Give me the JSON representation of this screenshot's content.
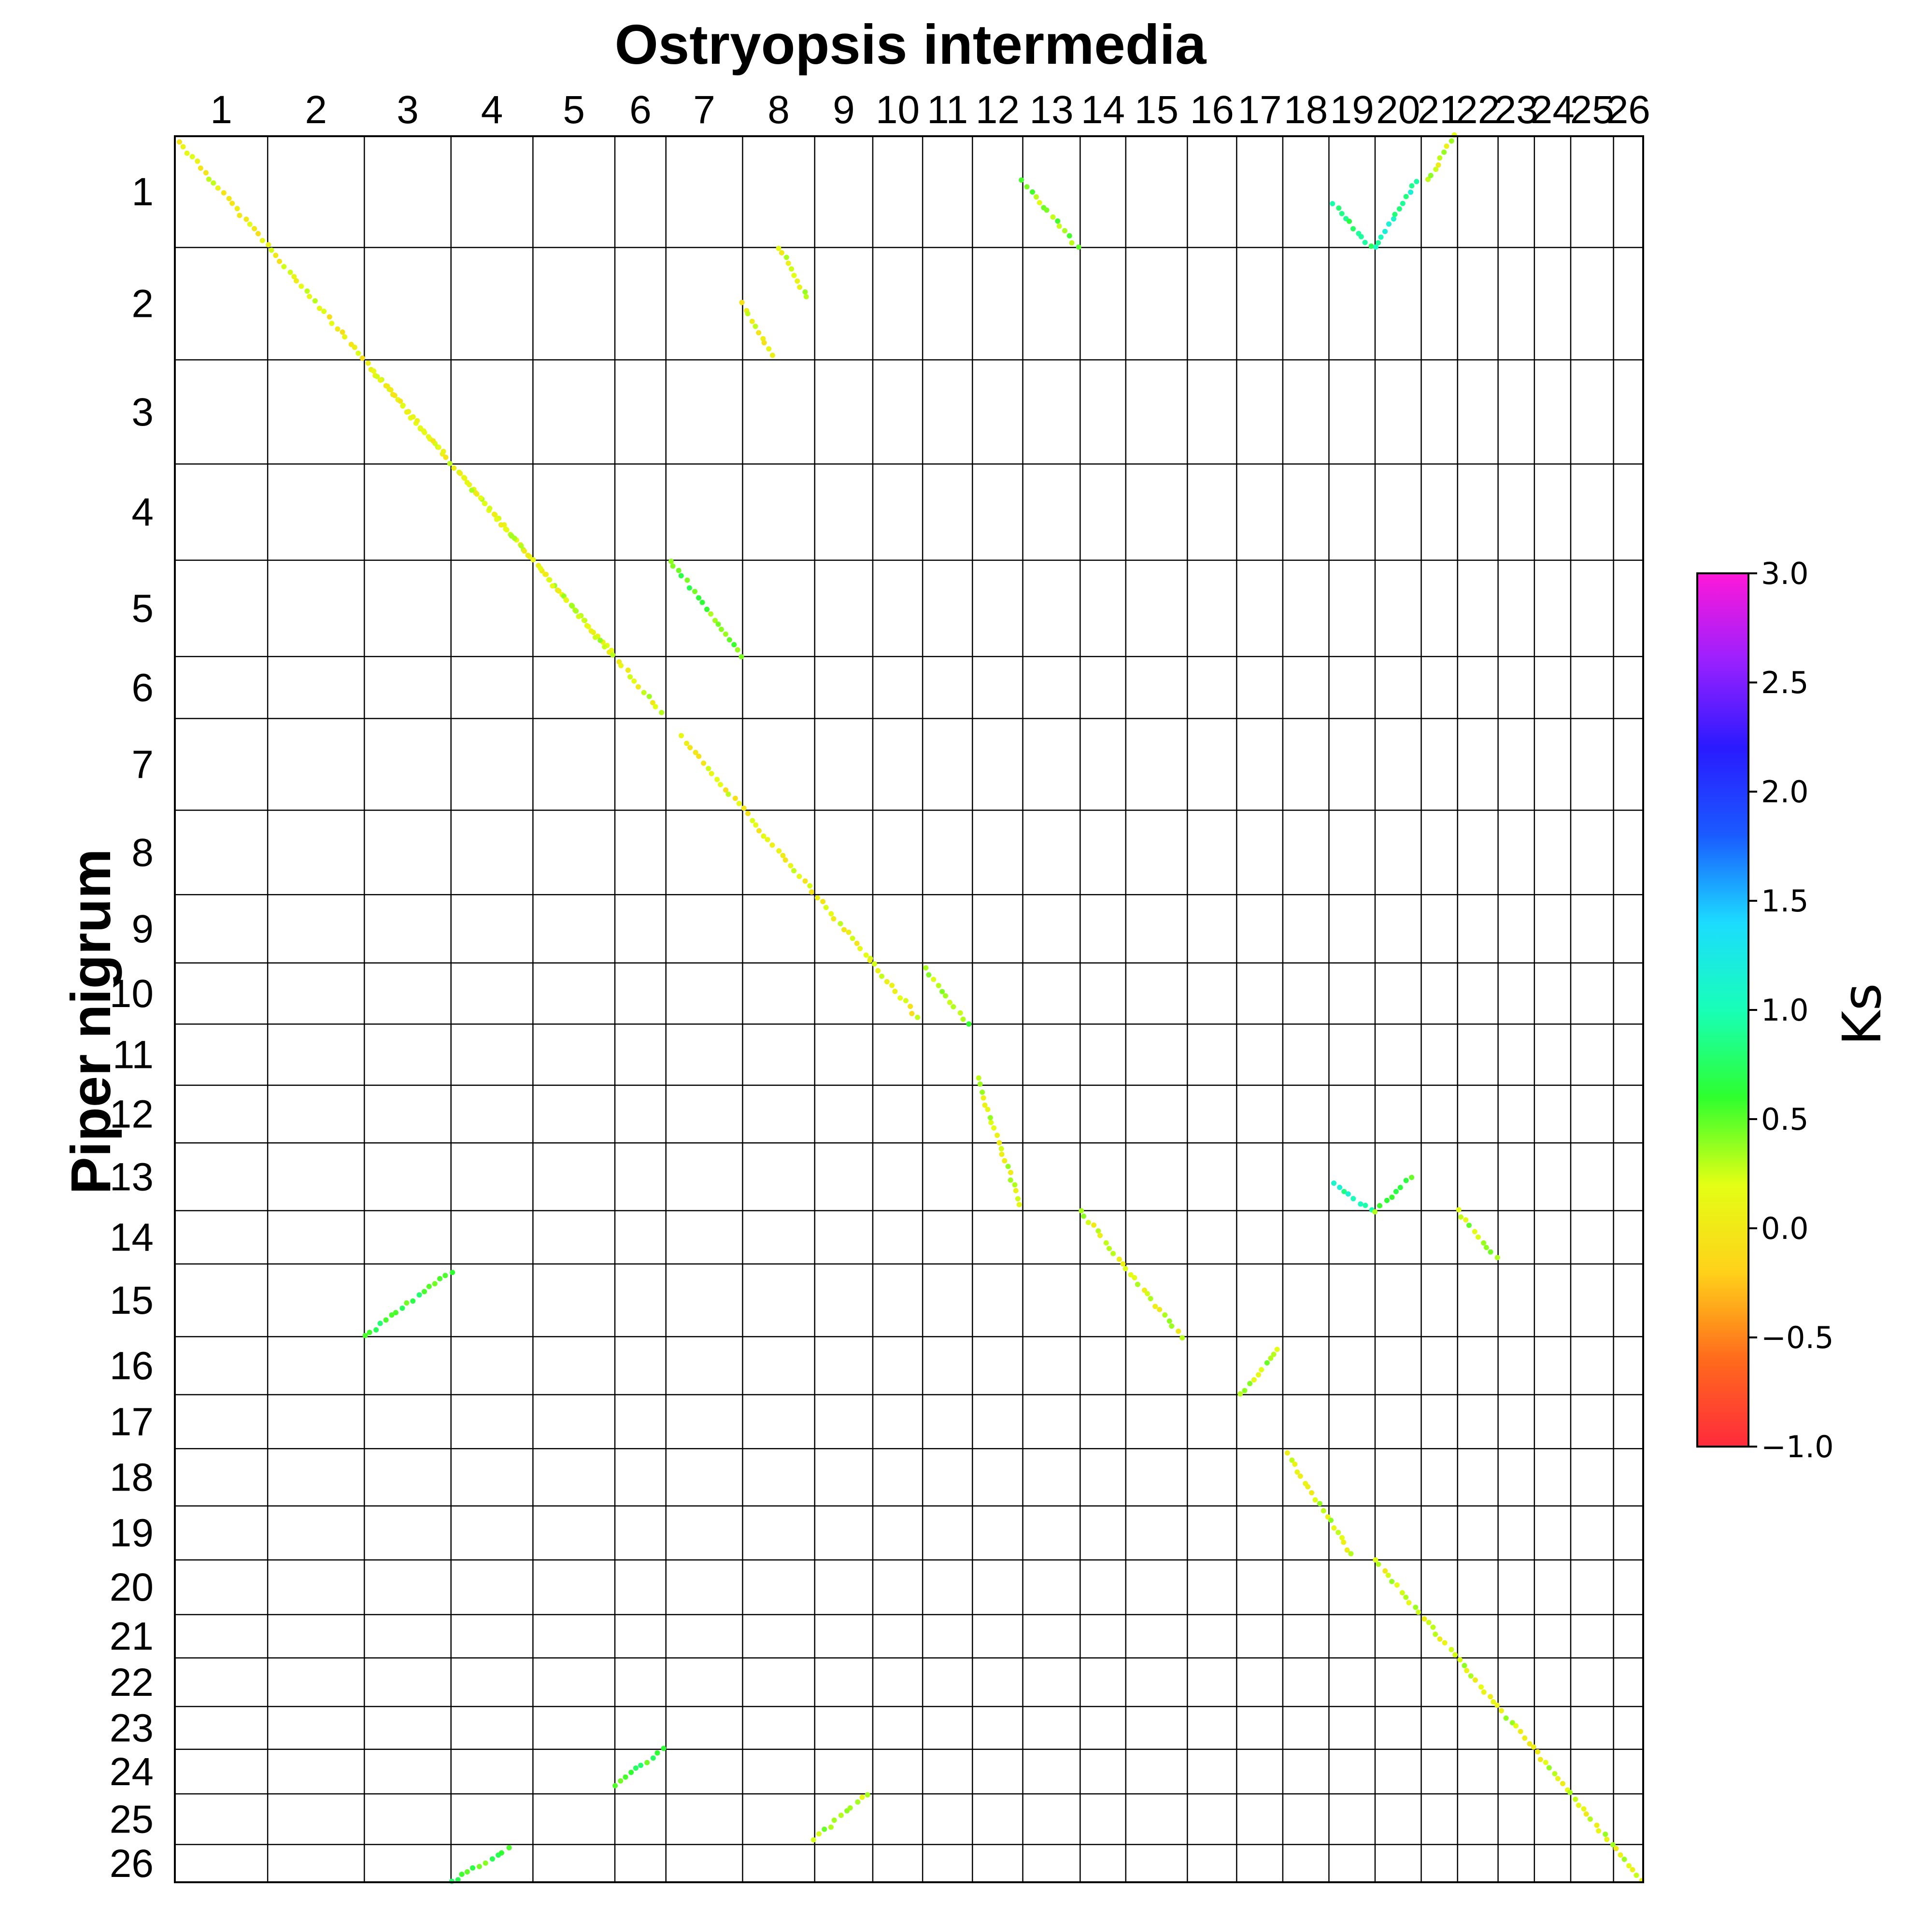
{
  "chart_data": {
    "type": "scatter",
    "title": "Ostryopsis intermedia",
    "xlabel": "Ostryopsis intermedia",
    "ylabel": "Piper nigrum",
    "x_chromosomes": [
      "1",
      "2",
      "3",
      "4",
      "5",
      "6",
      "7",
      "8",
      "9",
      "10",
      "11",
      "12",
      "13",
      "14",
      "15",
      "16",
      "17",
      "18",
      "19",
      "20",
      "21",
      "22",
      "23",
      "24",
      "25",
      "26"
    ],
    "y_chromosomes": [
      "1",
      "2",
      "3",
      "4",
      "5",
      "6",
      "7",
      "8",
      "9",
      "10",
      "11",
      "12",
      "13",
      "14",
      "15",
      "16",
      "17",
      "18",
      "19",
      "20",
      "21",
      "22",
      "23",
      "24",
      "25",
      "26"
    ],
    "x_block_fractions": [
      0.0529,
      0.0551,
      0.0494,
      0.0467,
      0.0467,
      0.0291,
      0.0437,
      0.0411,
      0.0331,
      0.0284,
      0.0284,
      0.0287,
      0.0327,
      0.026,
      0.0351,
      0.0281,
      0.0263,
      0.0263,
      0.0263,
      0.0263,
      0.0207,
      0.0231,
      0.0207,
      0.0207,
      0.0244,
      0.0169
    ],
    "y_block_fractions": [
      0.0637,
      0.0643,
      0.0596,
      0.0551,
      0.0551,
      0.0355,
      0.0525,
      0.0483,
      0.0391,
      0.035,
      0.035,
      0.033,
      0.0388,
      0.0305,
      0.0416,
      0.0332,
      0.0309,
      0.0328,
      0.0309,
      0.0313,
      0.0248,
      0.0278,
      0.0245,
      0.0255,
      0.029,
      0.0216
    ],
    "colorbar": {
      "label": "Ks",
      "range": [
        -1.0,
        3.0
      ],
      "ticks": [
        "3.0",
        "2.5",
        "2.0",
        "1.5",
        "1.0",
        "0.5",
        "0.0",
        "−0.5",
        "−1.0"
      ],
      "tick_values": [
        3.0,
        2.5,
        2.0,
        1.5,
        1.0,
        0.5,
        0.0,
        -0.5,
        -1.0
      ],
      "colormap": [
        "#ff2a3c",
        "#ff6a1c",
        "#ffd21a",
        "#e4ff14",
        "#2eff2e",
        "#18ffb8",
        "#1cdcff",
        "#1a5bff",
        "#2a1aff",
        "#9a20ff",
        "#ff18d8"
      ]
    },
    "series": [
      {
        "segments": [
          {
            "x": [
              1,
              0.05
            ],
            "y": [
              1,
              0.05
            ],
            "x2": [
              2,
              0.9
            ],
            "y2": [
              2,
              0.9
            ],
            "ks": 0.1
          },
          {
            "x": [
              2,
              0.9
            ],
            "y": [
              2,
              0.9
            ],
            "x2": [
              3,
              0.9
            ],
            "y2": [
              3,
              0.9
            ],
            "ks": 0.1
          },
          {
            "x": [
              3,
              0.1
            ],
            "y": [
              3,
              0.1
            ],
            "x2": [
              4,
              0.95
            ],
            "y2": [
              4,
              0.95
            ],
            "ks": 0.15
          },
          {
            "x": [
              4,
              0.1
            ],
            "y": [
              4,
              0.1
            ],
            "x2": [
              5,
              0.95
            ],
            "y2": [
              5,
              0.95
            ],
            "ks": 0.2
          },
          {
            "x": [
              5,
              0.1
            ],
            "y": [
              5,
              0.1
            ],
            "x2": [
              6,
              0.9
            ],
            "y2": [
              6,
              0.9
            ],
            "ks": 0.2
          },
          {
            "x": [
              7,
              0.05
            ],
            "y": [
              5,
              0.0
            ],
            "x2": [
              8,
              0.0
            ],
            "y2": [
              6,
              0.0
            ],
            "ks": 0.5
          },
          {
            "x": [
              7,
              0.2
            ],
            "y": [
              7,
              0.2
            ],
            "x2": [
              9,
              0.95
            ],
            "y2": [
              9,
              0.95
            ],
            "ks": 0.1
          },
          {
            "x": [
              9,
              0.95
            ],
            "y": [
              9,
              0.95
            ],
            "x2": [
              10,
              0.9
            ],
            "y2": [
              10,
              0.9
            ],
            "ks": 0.1
          },
          {
            "x": [
              11,
              0.05
            ],
            "y": [
              10,
              0.1
            ],
            "x2": [
              11,
              0.9
            ],
            "y2": [
              11,
              0.0
            ],
            "ks": 0.4
          },
          {
            "x": [
              12,
              0.1
            ],
            "y": [
              11,
              0.9
            ],
            "x2": [
              12,
              0.95
            ],
            "y2": [
              13,
              0.9
            ],
            "ks": 0.2
          },
          {
            "x": [
              13,
              0.0
            ],
            "y": [
              1,
              0.4
            ],
            "x2": [
              13,
              0.95
            ],
            "y2": [
              1,
              1.0
            ],
            "ks": 0.4
          },
          {
            "x": [
              14,
              0.0
            ],
            "y": [
              14,
              0.0
            ],
            "x2": [
              15,
              0.9
            ],
            "y2": [
              16,
              0.0
            ],
            "ks": 0.2
          },
          {
            "x": [
              17,
              0.1
            ],
            "y": [
              17,
              0.0
            ],
            "x2": [
              17,
              0.9
            ],
            "y2": [
              16,
              0.2
            ],
            "ks": 0.3
          },
          {
            "x": [
              18,
              0.1
            ],
            "y": [
              18,
              0.1
            ],
            "x2": [
              19,
              0.5
            ],
            "y2": [
              19,
              0.9
            ],
            "ks": 0.2
          },
          {
            "x": [
              20,
              0.0
            ],
            "y": [
              20,
              0.0
            ],
            "x2": [
              22,
              0.9
            ],
            "y2": [
              22,
              0.9
            ],
            "ks": 0.2
          },
          {
            "x": [
              22,
              0.0
            ],
            "y": [
              14,
              0.0
            ],
            "x2": [
              22,
              0.95
            ],
            "y2": [
              14,
              0.9
            ],
            "ks": 0.3
          },
          {
            "x": [
              23,
              0.0
            ],
            "y": [
              23,
              0.0
            ],
            "x2": [
              24,
              0.9
            ],
            "y2": [
              24,
              0.9
            ],
            "ks": 0.2
          },
          {
            "x": [
              25,
              0.0
            ],
            "y": [
              25,
              0.0
            ],
            "x2": [
              26,
              0.95
            ],
            "y2": [
              26,
              0.95
            ],
            "ks": 0.2
          },
          {
            "x": [
              3,
              0.0
            ],
            "y": [
              15,
              1.0
            ],
            "x2": [
              4,
              0.0
            ],
            "y2": [
              15,
              0.1
            ],
            "ks": 0.6
          },
          {
            "x": [
              6,
              0.0
            ],
            "y": [
              24,
              0.8
            ],
            "x2": [
              6,
              0.95
            ],
            "y2": [
              24,
              0.0
            ],
            "ks": 0.6
          },
          {
            "x": [
              9,
              0.0
            ],
            "y": [
              25,
              0.9
            ],
            "x2": [
              9,
              0.9
            ],
            "y2": [
              25,
              0.0
            ],
            "ks": 0.3
          },
          {
            "x": [
              8,
              0.5
            ],
            "y": [
              2,
              0.0
            ],
            "x2": [
              8,
              0.9
            ],
            "y2": [
              2,
              0.45
            ],
            "ks": 0.2
          },
          {
            "x": [
              8,
              0.0
            ],
            "y": [
              2,
              0.5
            ],
            "x2": [
              8,
              0.4
            ],
            "y2": [
              2,
              0.95
            ],
            "ks": 0.1
          },
          {
            "x": [
              19,
              0.1
            ],
            "y": [
              1,
              0.6
            ],
            "x2": [
              19,
              0.9
            ],
            "y2": [
              1,
              1.0
            ],
            "ks": 0.8
          },
          {
            "x": [
              20,
              0.0
            ],
            "y": [
              1,
              1.0
            ],
            "x2": [
              20,
              0.9
            ],
            "y2": [
              1,
              0.4
            ],
            "ks": 1.0
          },
          {
            "x": [
              19,
              0.1
            ],
            "y": [
              13,
              0.6
            ],
            "x2": [
              19,
              0.9
            ],
            "y2": [
              13,
              1.0
            ],
            "ks": 1.0
          },
          {
            "x": [
              20,
              0.0
            ],
            "y": [
              13,
              1.0
            ],
            "x2": [
              20,
              0.8
            ],
            "y2": [
              13,
              0.5
            ],
            "ks": 0.5
          },
          {
            "x": [
              4,
              0.0
            ],
            "y": [
              26,
              1.0
            ],
            "x2": [
              4,
              0.7
            ],
            "y2": [
              26,
              0.1
            ],
            "ks": 0.6
          },
          {
            "x": [
              21,
              0.2
            ],
            "y": [
              1,
              0.4
            ],
            "x2": [
              21,
              0.9
            ],
            "y2": [
              1,
              0.0
            ],
            "ks": 0.2
          }
        ]
      }
    ]
  }
}
